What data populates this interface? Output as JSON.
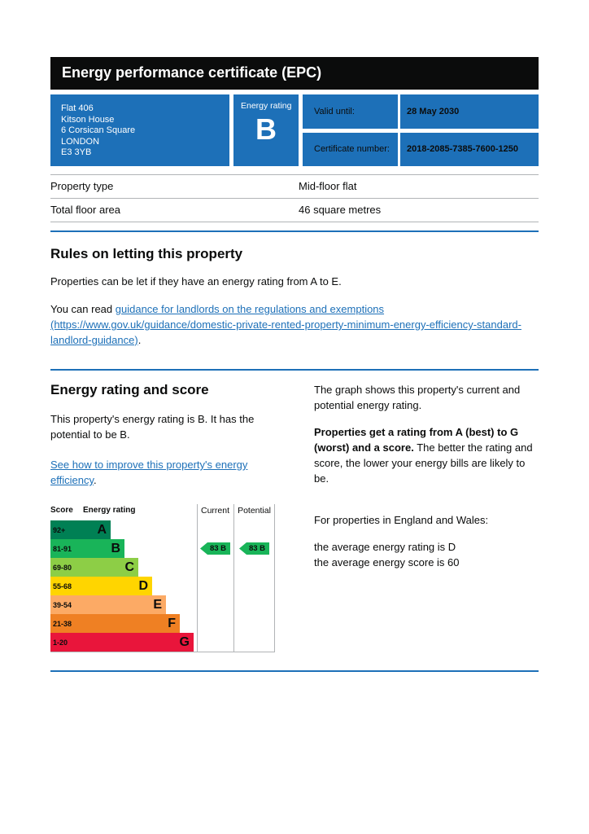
{
  "page": {
    "title": "Energy performance certificate (EPC)"
  },
  "colors": {
    "govuk_blue": "#1d70b8",
    "masthead_black": "#0b0c0c",
    "border_grey": "#b1b4b6",
    "link_blue": "#1d70b8"
  },
  "summary": {
    "address_lines": [
      "Flat 406",
      "Kitson House",
      "6 Corsican Square",
      "LONDON",
      "E3 3YB"
    ],
    "rating_label": "Energy rating",
    "rating_value": "B",
    "valid_until_label": "Valid until:",
    "valid_until_value": "28 May 2030",
    "certificate_label": "Certificate number:",
    "certificate_value": "2018-2085-7385-7600-1250"
  },
  "details": {
    "rows": [
      {
        "label": "Property type",
        "value": "Mid-floor flat"
      },
      {
        "label": "Total floor area",
        "value": "46 square metres"
      }
    ]
  },
  "rules": {
    "heading": "Rules on letting this property",
    "para1": "Properties can be let if they have an energy rating from A to E.",
    "para2_prefix": "You can read ",
    "para2_link": "guidance for landlords on the regulations and exemptions (https://www.gov.uk/guidance/domestic-private-rented-property-minimum-energy-efficiency-standard-landlord-guidance)",
    "para2_suffix": "."
  },
  "rating": {
    "heading": "Energy rating and score",
    "para1": "This property's energy rating is B. It has the potential to be B.",
    "improve_link": "See how to improve this property's energy efficiency",
    "improve_suffix": ".",
    "graph_para": "The graph shows this property's current and potential energy rating.",
    "ratings_bold": "Properties get a rating from A (best) to G (worst) and a score.",
    "ratings_rest": " The better the rating and score, the lower your energy bills are likely to be.",
    "eng_wales": "For properties in England and Wales:",
    "avg_rating": "the average energy rating is D",
    "avg_score": "the average energy score is 60"
  },
  "chart_data": {
    "type": "bar",
    "columns": {
      "score": "Score",
      "rating": "Energy rating",
      "current": "Current",
      "potential": "Potential"
    },
    "bands": [
      {
        "range": "92+",
        "letter": "A",
        "color": "#008054"
      },
      {
        "range": "81-91",
        "letter": "B",
        "color": "#19b459"
      },
      {
        "range": "69-80",
        "letter": "C",
        "color": "#8dce46"
      },
      {
        "range": "55-68",
        "letter": "D",
        "color": "#ffd500"
      },
      {
        "range": "39-54",
        "letter": "E",
        "color": "#fcaa65"
      },
      {
        "range": "21-38",
        "letter": "F",
        "color": "#ef8023"
      },
      {
        "range": "1-20",
        "letter": "G",
        "color": "#e9153b"
      }
    ],
    "current": {
      "score": 83,
      "letter": "B",
      "band_index": 1,
      "color": "#19b459"
    },
    "potential": {
      "score": 83,
      "letter": "B",
      "band_index": 1,
      "color": "#19b459"
    }
  }
}
